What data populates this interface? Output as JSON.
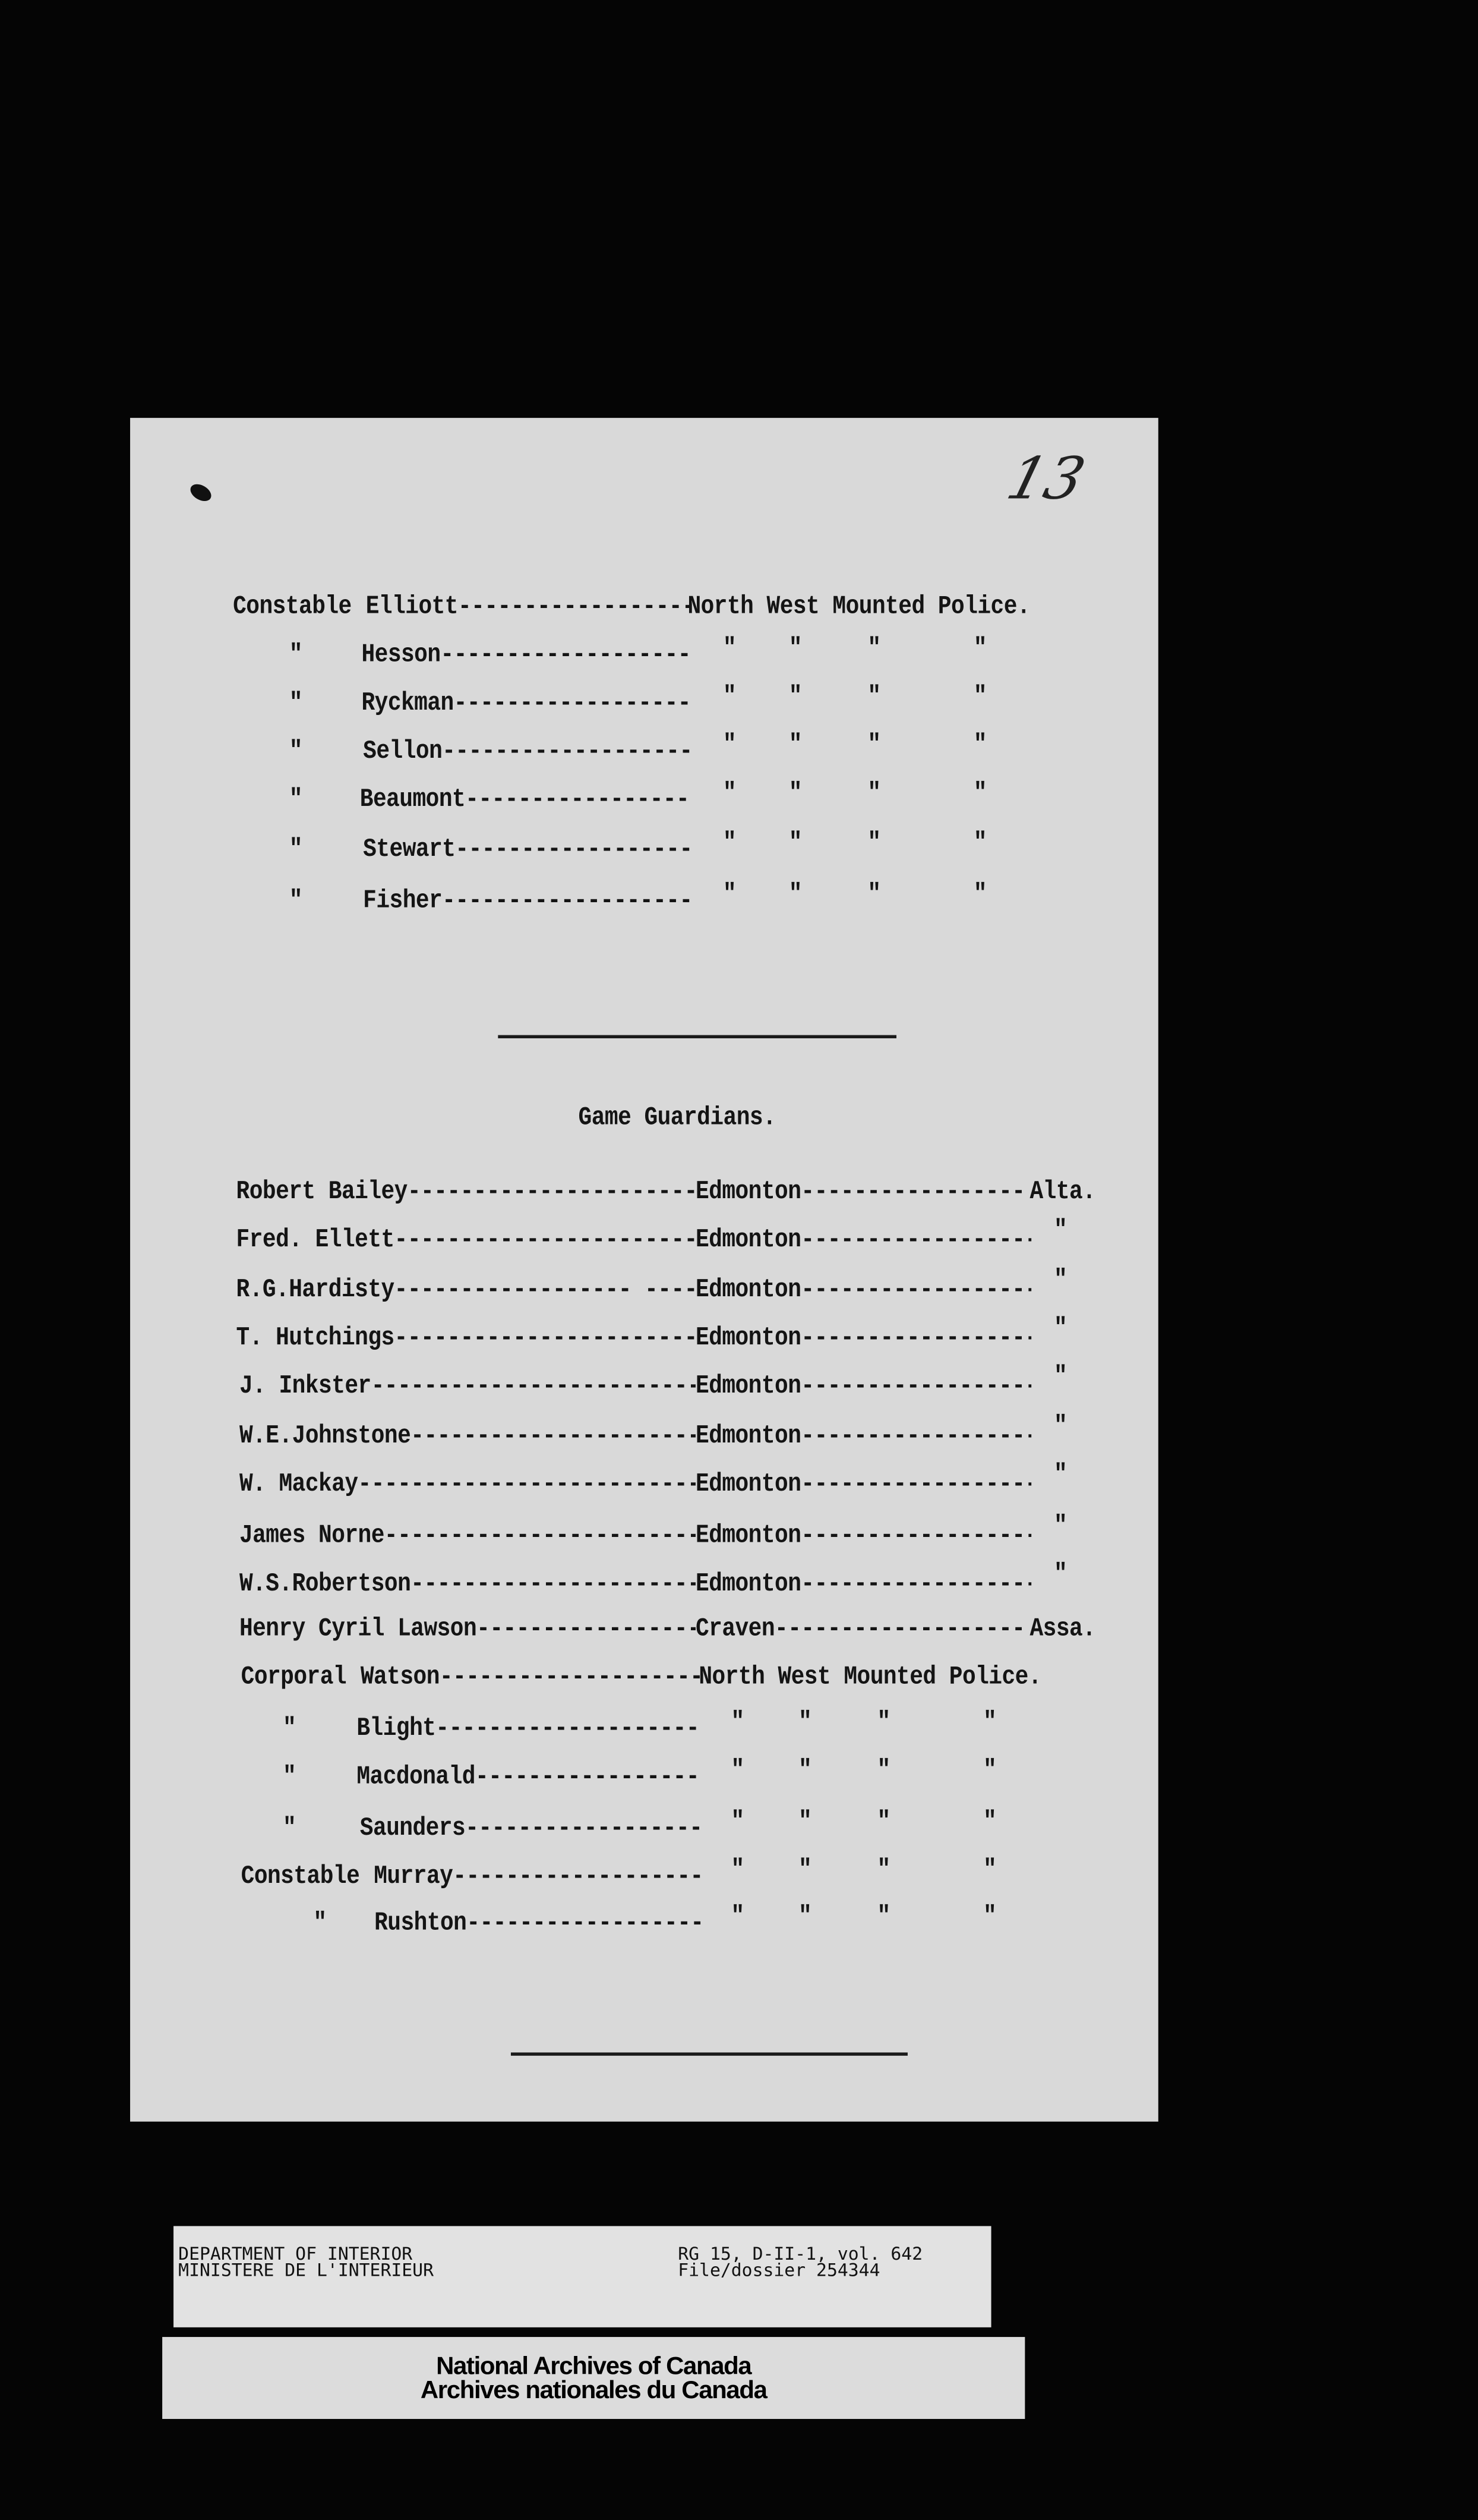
{
  "page_number": "13",
  "nwmp_top": [
    {
      "prefix": "Constable",
      "name": "Elliott-----------------------",
      "unit": "North West Mounted Police."
    },
    {
      "prefix": "\"",
      "name": "Hesson------------------------",
      "dittos": [
        "\"",
        "\"",
        "\"",
        "\""
      ]
    },
    {
      "prefix": "\"",
      "name": "Ryckman-----------------------",
      "dittos": [
        "\"",
        "\"",
        "\"",
        "\""
      ]
    },
    {
      "prefix": "\"",
      "name": "Sellon------------------------",
      "dittos": [
        "\"",
        "\"",
        "\"",
        "\""
      ]
    },
    {
      "prefix": "\"",
      "name": "Beaumont----------------------",
      "dittos": [
        "\"",
        "\"",
        "\"",
        "\""
      ]
    },
    {
      "prefix": "\"",
      "name": "Stewart-----------------------",
      "dittos": [
        "\"",
        "\"",
        "\"",
        "\""
      ]
    },
    {
      "prefix": "\"",
      "name": "Fisher------------------------",
      "dittos": [
        "\"",
        "\"",
        "\"",
        "\""
      ]
    }
  ],
  "section_title": "Game Guardians.",
  "guardians": [
    {
      "name": "Robert Bailey------------------------------",
      "place": "Edmonton------------------------",
      "region": "Alta."
    },
    {
      "name": "Fred. Ellett-------------------------------",
      "place": "Edmonton------------------------",
      "region": "\""
    },
    {
      "name": "R.G.Hardisty------------------ ------------",
      "place": "Edmonton------------------------",
      "region": "\""
    },
    {
      "name": "T. Hutchings-------------------------------",
      "place": "Edmonton------------------------",
      "region": "\""
    },
    {
      "name": "J. Inkster---------------------------------",
      "place": "Edmonton------------------------",
      "region": "\""
    },
    {
      "name": "W.E.Johnstone------------------------------",
      "place": "Edmonton------------------------",
      "region": "\""
    },
    {
      "name": "W. Mackay----------------------------------",
      "place": "Edmonton------------------------",
      "region": "\""
    },
    {
      "name": "James Norne--------------------------------",
      "place": "Edmonton------------------------",
      "region": "\""
    },
    {
      "name": "W.S.Robertson------------------------------",
      "place": "Edmonton------------------------",
      "region": "\""
    },
    {
      "name": "Henry Cyril Lawson-------------------------",
      "place": "Craven--------------------------",
      "region": "Assa."
    }
  ],
  "nwmp_bottom": [
    {
      "prefix": "Corporal",
      "name": "Watson------------------------",
      "unit": "North West Mounted Police."
    },
    {
      "prefix": "\"",
      "name": "Blight------------------------",
      "dittos": [
        "\"",
        "\"",
        "\"",
        "\""
      ]
    },
    {
      "prefix": "\"",
      "name": "Macdonald---------------------",
      "dittos": [
        "\"",
        "\"",
        "\"",
        "\""
      ]
    },
    {
      "prefix": "\"",
      "name": "Saunders----------------------",
      "dittos": [
        "\"",
        "\"",
        "\"",
        "\""
      ]
    },
    {
      "prefix": "Constable",
      "name": "Murray------------------------",
      "dittos": [
        "\"",
        "\"",
        "\"",
        "\""
      ]
    },
    {
      "prefix": "\"",
      "name": "Rushton-----------------------",
      "dittos": [
        "\"",
        "\"",
        "\"",
        "\""
      ]
    }
  ],
  "archive_label": {
    "dept_en": "DEPARTMENT OF INTERIOR",
    "dept_fr": "MINISTERE DE L'INTERIEUR",
    "reference": "RG 15, D-II-1, vol. 642",
    "file": "File/dossier 254344"
  },
  "archive_stamp": {
    "line_en": "National Archives of Canada",
    "line_fr": "Archives nationales du Canada"
  }
}
